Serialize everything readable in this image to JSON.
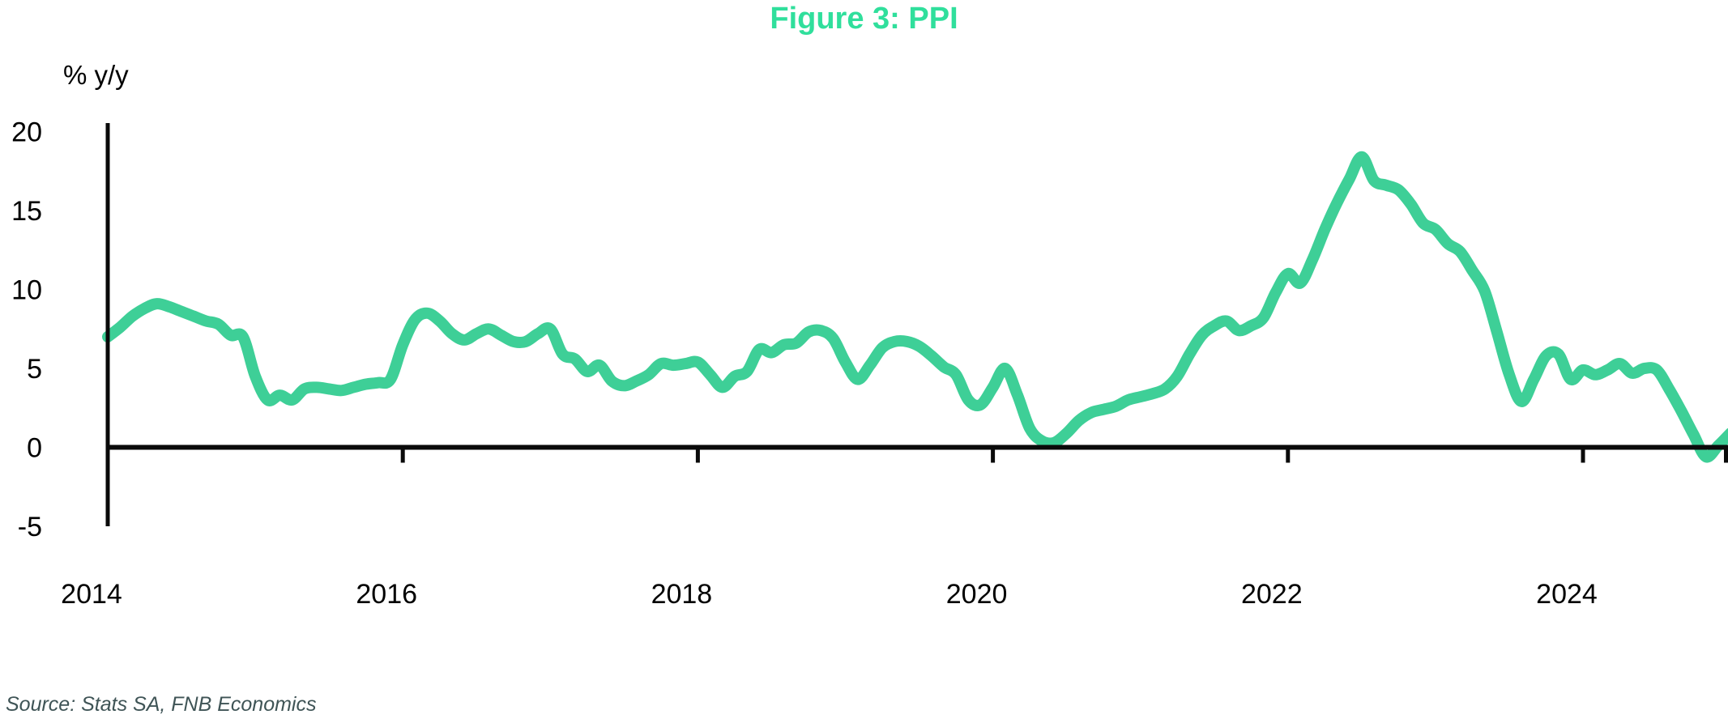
{
  "title": "Figure 3: PPI",
  "y_axis_unit": "% y/y",
  "source": "Source: Stats SA, FNB Economics",
  "colors": {
    "line": "#3ecf97",
    "title": "#30df9c",
    "axis": "#0a0a0a",
    "tick_text": "#000000",
    "source_text": "#3f5456",
    "background": "#ffffff"
  },
  "chart_data": {
    "type": "line",
    "title": "Figure 3: PPI",
    "series_name": "PPI",
    "ylabel": "% y/y",
    "frequency": "monthly",
    "x_start": "2014-01",
    "x_end": "2025-01",
    "x_tick_labels": [
      "2014",
      "2016",
      "2018",
      "2020",
      "2022",
      "2024"
    ],
    "x_tick_years": [
      2014,
      2016,
      2018,
      2020,
      2022,
      2024
    ],
    "y_ticks": [
      -5,
      0,
      5,
      10,
      15,
      20
    ],
    "ylim": [
      -5,
      20
    ],
    "grid": false,
    "legend": false,
    "values": [
      7.0,
      7.6,
      8.3,
      8.8,
      9.1,
      8.9,
      8.6,
      8.3,
      8.0,
      7.8,
      7.1,
      7.0,
      4.5,
      3.0,
      3.3,
      3.0,
      3.7,
      3.8,
      3.7,
      3.6,
      3.8,
      4.0,
      4.1,
      4.3,
      6.5,
      8.1,
      8.5,
      8.0,
      7.2,
      6.8,
      7.2,
      7.5,
      7.1,
      6.7,
      6.7,
      7.2,
      7.5,
      5.9,
      5.6,
      4.8,
      5.2,
      4.2,
      3.9,
      4.2,
      4.6,
      5.3,
      5.2,
      5.3,
      5.4,
      4.6,
      3.8,
      4.5,
      4.8,
      6.2,
      6.0,
      6.5,
      6.6,
      7.3,
      7.4,
      6.9,
      5.4,
      4.3,
      5.2,
      6.3,
      6.7,
      6.7,
      6.4,
      5.8,
      5.1,
      4.6,
      3.0,
      2.7,
      3.8,
      5.0,
      3.3,
      1.2,
      0.4,
      0.3,
      0.9,
      1.7,
      2.2,
      2.4,
      2.6,
      3.0,
      3.2,
      3.4,
      3.7,
      4.5,
      5.9,
      7.1,
      7.7,
      8.0,
      7.4,
      7.7,
      8.2,
      9.8,
      11.0,
      10.4,
      11.9,
      13.8,
      15.5,
      17.0,
      18.4,
      16.9,
      16.6,
      16.3,
      15.4,
      14.2,
      13.8,
      12.9,
      12.4,
      11.2,
      9.9,
      7.3,
      4.6,
      2.9,
      4.3,
      5.8,
      5.9,
      4.3,
      4.9,
      4.6,
      4.9,
      5.3,
      4.7,
      5.0,
      4.9,
      3.7,
      2.3,
      0.8,
      -0.6,
      0.1,
      0.9
    ]
  }
}
